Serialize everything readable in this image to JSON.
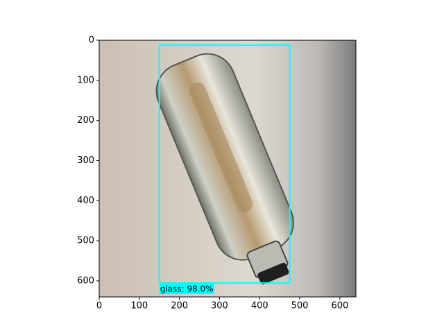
{
  "chart_data": {
    "type": "detection",
    "xlim": [
      0,
      640
    ],
    "ylim": [
      640,
      0
    ],
    "xticks": [
      0,
      100,
      200,
      300,
      400,
      500,
      600
    ],
    "yticks": [
      0,
      100,
      200,
      300,
      400,
      500,
      600
    ],
    "boxes": [
      {
        "label": "glass: 98.0%",
        "x0": 150,
        "y0": 12,
        "x1": 475,
        "y1": 605,
        "color": "#00ffff"
      }
    ]
  }
}
